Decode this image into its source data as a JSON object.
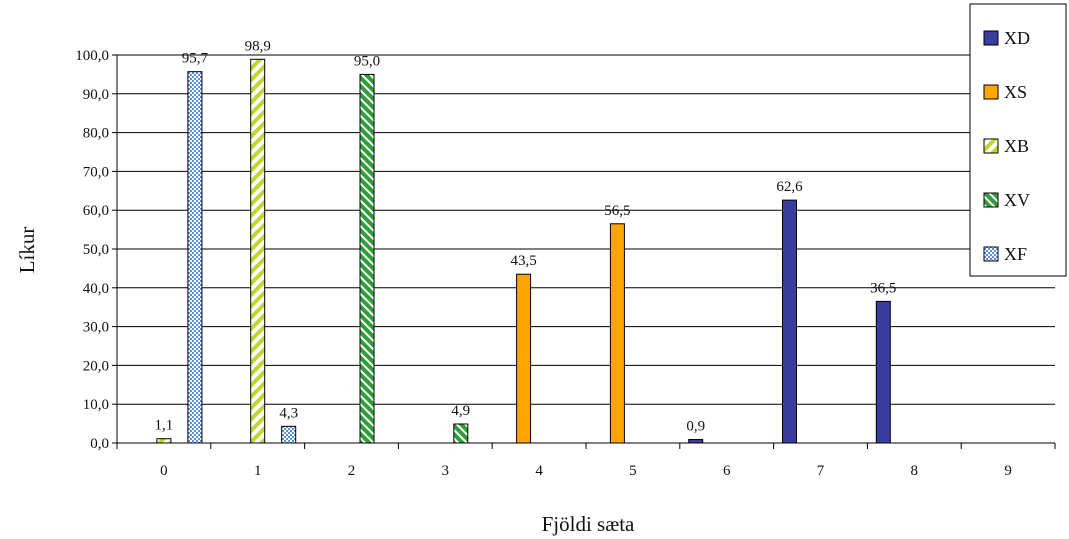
{
  "chart_data": {
    "type": "bar",
    "title": "",
    "xlabel": "Fjöldi sæta",
    "ylabel": "Líkur",
    "categories": [
      "0",
      "1",
      "2",
      "3",
      "4",
      "5",
      "6",
      "7",
      "8",
      "9"
    ],
    "ylim": [
      0,
      100
    ],
    "yticks": [
      "0,0",
      "10,0",
      "20,0",
      "30,0",
      "40,0",
      "50,0",
      "60,0",
      "70,0",
      "80,0",
      "90,0",
      "100,0"
    ],
    "grid": true,
    "legend_position": "top-right",
    "series": [
      {
        "name": "XD",
        "color": "#3a3d9e",
        "pattern": "solid",
        "values": [
          0,
          0,
          0,
          0,
          0,
          0,
          0.9,
          62.6,
          36.5,
          0
        ],
        "labels": [
          "",
          "",
          "",
          "",
          "",
          "",
          "0,9",
          "62,6",
          "36,5",
          ""
        ]
      },
      {
        "name": "XS",
        "color": "#ffa500",
        "pattern": "solid",
        "values": [
          0,
          0,
          0,
          0,
          43.5,
          56.5,
          0,
          0,
          0,
          0
        ],
        "labels": [
          "",
          "",
          "",
          "",
          "43,5",
          "56,5",
          "",
          "",
          "",
          ""
        ]
      },
      {
        "name": "XB",
        "color": "#bfd730",
        "pattern": "diagonal",
        "values": [
          1.1,
          98.9,
          0,
          0,
          0,
          0,
          0,
          0,
          0,
          0
        ],
        "labels": [
          "1,1",
          "98,9",
          "",
          "",
          "",
          "",
          "",
          "",
          "",
          ""
        ]
      },
      {
        "name": "XV",
        "color": "#2f9e3a",
        "pattern": "hatch",
        "values": [
          0,
          0,
          95.0,
          4.9,
          0,
          0,
          0,
          0,
          0,
          0
        ],
        "labels": [
          "",
          "",
          "95,0",
          "4,9",
          "",
          "",
          "",
          "",
          "",
          ""
        ]
      },
      {
        "name": "XF",
        "color": "#5b8fe0",
        "pattern": "checker",
        "values": [
          95.7,
          4.3,
          0,
          0,
          0,
          0,
          0,
          0,
          0,
          0
        ],
        "labels": [
          "95,7",
          "4,3",
          "",
          "",
          "",
          "",
          "",
          "",
          "",
          ""
        ]
      }
    ]
  }
}
